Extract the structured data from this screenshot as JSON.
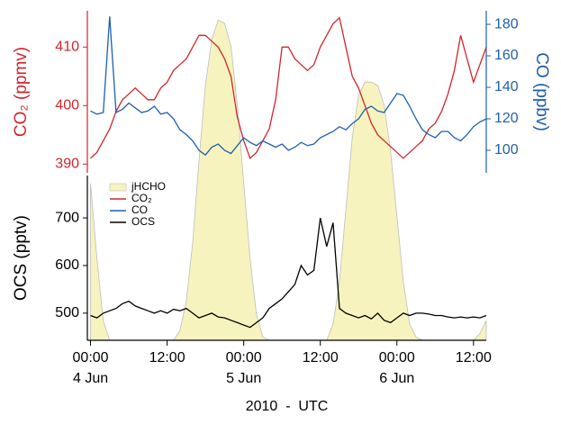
{
  "chart_data": [
    {
      "type": "line",
      "ylabel": "CO₂ (ppmv)",
      "y2label": "CO (ppbv)",
      "x": [
        0,
        1,
        2,
        3,
        4,
        5,
        6,
        7,
        8,
        9,
        10,
        11,
        12,
        13,
        14,
        15,
        16,
        17,
        18,
        19,
        20,
        21,
        22,
        23,
        24,
        25,
        26,
        27,
        28,
        29,
        30,
        31,
        32,
        33,
        34,
        35,
        36,
        37,
        38,
        39,
        40,
        41,
        42,
        43,
        44,
        45,
        46,
        47,
        48,
        49,
        50,
        51,
        52,
        53,
        54,
        55,
        56,
        57,
        58,
        59,
        60,
        61,
        62
      ],
      "xlim": [
        -0.5,
        62
      ],
      "ylim": [
        388.5,
        416.2
      ],
      "yticks": [
        390,
        400,
        410
      ],
      "y2lim": [
        85.7,
        188.6
      ],
      "y2ticks": [
        100,
        120,
        140,
        160,
        180
      ],
      "series": [
        {
          "name": "CO₂",
          "color": "#d0262c",
          "axis": "y",
          "values": [
            391,
            392,
            394,
            396,
            399,
            401,
            402,
            403,
            402,
            401,
            401,
            403,
            404,
            406,
            407,
            408,
            410,
            412,
            412,
            411,
            410,
            408,
            405,
            398,
            394,
            391,
            392,
            394,
            396,
            401,
            410,
            410,
            408,
            407,
            406,
            407,
            410,
            412,
            414,
            415,
            410,
            405,
            403,
            400,
            397,
            395,
            394,
            393,
            392,
            391,
            392,
            393,
            394,
            396,
            397,
            399,
            402,
            406,
            412,
            408,
            404,
            407,
            410
          ]
        },
        {
          "name": "CO",
          "color": "#1f5fb0",
          "axis": "y2",
          "values": [
            125,
            123,
            124,
            185,
            124,
            126,
            130,
            127,
            124,
            125,
            128,
            123,
            124,
            120,
            113,
            110,
            106,
            100,
            97,
            102,
            104,
            100,
            98,
            103,
            108,
            105,
            103,
            106,
            104,
            102,
            104,
            100,
            102,
            105,
            103,
            104,
            108,
            110,
            112,
            115,
            113,
            117,
            120,
            126,
            128,
            125,
            124,
            130,
            136,
            135,
            128,
            120,
            113,
            110,
            108,
            112,
            112,
            108,
            106,
            110,
            115,
            118,
            120
          ]
        }
      ]
    },
    {
      "type": "line",
      "ylabel": "OCS (pptv)",
      "xlabel": "2010  -  UTC",
      "x": [
        0,
        1,
        2,
        3,
        4,
        5,
        6,
        7,
        8,
        9,
        10,
        11,
        12,
        13,
        14,
        15,
        16,
        17,
        18,
        19,
        20,
        21,
        22,
        23,
        24,
        25,
        26,
        27,
        28,
        29,
        30,
        31,
        32,
        33,
        34,
        35,
        36,
        37,
        38,
        39,
        40,
        41,
        42,
        43,
        44,
        45,
        46,
        47,
        48,
        49,
        50,
        51,
        52,
        53,
        54,
        55,
        56,
        57,
        58,
        59,
        60,
        61,
        62
      ],
      "xlim": [
        -0.5,
        62
      ],
      "xticks": [
        {
          "value": 0,
          "label": "00:00"
        },
        {
          "value": 12,
          "label": "12:00"
        },
        {
          "value": 24,
          "label": "00:00"
        },
        {
          "value": 36,
          "label": "12:00"
        },
        {
          "value": 48,
          "label": "00:00"
        },
        {
          "value": 60,
          "label": "12:00"
        }
      ],
      "xdates": [
        {
          "value": 0,
          "label": "4 Jun"
        },
        {
          "value": 24,
          "label": "5 Jun"
        },
        {
          "value": 48,
          "label": "6 Jun"
        }
      ],
      "ylim": [
        443,
        789
      ],
      "yticks": [
        500,
        600,
        700
      ],
      "jlim": [
        0,
        1
      ],
      "series": [
        {
          "name": "jHCHO",
          "type": "area",
          "color": "#f7f3bf",
          "values": [
            0.48,
            0.25,
            0.06,
            0,
            0,
            0,
            0,
            0,
            0,
            0,
            0,
            0,
            0,
            0,
            0.03,
            0.12,
            0.3,
            0.55,
            0.78,
            0.92,
            0.98,
            0.97,
            0.9,
            0.72,
            0.48,
            0.25,
            0.08,
            0.01,
            0,
            0,
            0,
            0,
            0,
            0,
            0,
            0,
            0,
            0,
            0.05,
            0.18,
            0.4,
            0.62,
            0.75,
            0.79,
            0.79,
            0.78,
            0.72,
            0.58,
            0.38,
            0.18,
            0.05,
            0.01,
            0,
            0,
            0,
            0,
            0,
            0,
            0,
            0,
            0,
            0.02,
            0.06
          ]
        },
        {
          "name": "OCS",
          "color": "#000000",
          "values": [
            495,
            490,
            500,
            505,
            510,
            520,
            525,
            515,
            510,
            505,
            500,
            505,
            500,
            508,
            505,
            510,
            500,
            490,
            495,
            500,
            492,
            490,
            485,
            480,
            475,
            470,
            480,
            490,
            510,
            520,
            530,
            545,
            560,
            600,
            580,
            590,
            700,
            640,
            690,
            510,
            500,
            495,
            490,
            495,
            488,
            500,
            485,
            480,
            490,
            500,
            495,
            500,
            500,
            498,
            495,
            495,
            492,
            490,
            492,
            490,
            492,
            490,
            495
          ]
        }
      ]
    }
  ]
}
